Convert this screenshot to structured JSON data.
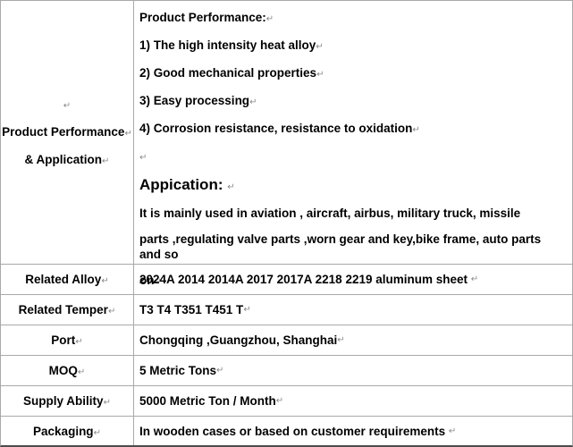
{
  "marks": {
    "return": "↵"
  },
  "performance_row": {
    "label_line1": "Product Performance",
    "label_line2": "& Application",
    "lines": {
      "title": "Product Performance:",
      "item1": "1) The high intensity heat alloy",
      "item2": "2) Good mechanical properties",
      "item3": "3) Easy processing",
      "item4": "4) Corrosion resistance, resistance to oxidation",
      "application_title": "Appication: ",
      "application_body1": "It is mainly used in aviation , aircraft, airbus, military truck, missile",
      "application_body2": "parts ,regulating valve parts ,worn gear and key,bike frame, auto parts and so",
      "application_body3": "on"
    }
  },
  "spec_rows": [
    {
      "label": "Related Alloy",
      "value": "2024A 2014 2014A 2017 2017A 2218 2219 aluminum sheet "
    },
    {
      "label": "Related Temper",
      "value": "T3 T4 T351 T451 T"
    },
    {
      "label": "Port",
      "value": "Chongqing ,Guangzhou, Shanghai"
    },
    {
      "label": "MOQ",
      "value": "5 Metric Tons"
    },
    {
      "label": "Supply Ability",
      "value": "5000 Metric Ton / Month"
    },
    {
      "label": "Packaging",
      "value": "In wooden cases or based on customer requirements "
    }
  ],
  "colors": {
    "border": "#a9a9a9",
    "bottom_border": "#4c4c4c",
    "text": "#000000",
    "paragraph_mark": "#8a8a8a"
  }
}
